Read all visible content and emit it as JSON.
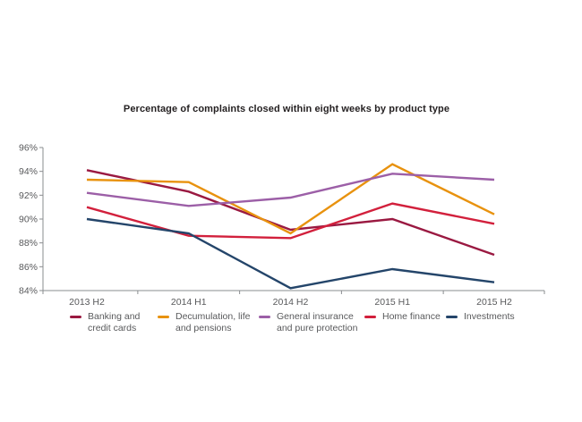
{
  "chart_data": {
    "type": "line",
    "title": "Percentage of complaints closed within eight weeks by product type",
    "categories": [
      "2013 H2",
      "2014 H1",
      "2014 H2",
      "2015 H1",
      "2015 H2"
    ],
    "xlabel": "",
    "ylabel": "",
    "y_axis": {
      "min": 84,
      "max": 96,
      "step": 2,
      "tick_labels": [
        "96%",
        "94%",
        "92%",
        "90%",
        "88%",
        "86%",
        "84%"
      ]
    },
    "grid": false,
    "legend_position": "bottom",
    "series": [
      {
        "name": "Banking and credit cards",
        "legend_lines": [
          "Banking and",
          "credit cards"
        ],
        "color": "#9A1941",
        "values": [
          94.1,
          92.3,
          89.1,
          90.0,
          87.0
        ]
      },
      {
        "name": "Decumulation, life and pensions",
        "legend_lines": [
          "Decumulation, life",
          "and pensions"
        ],
        "color": "#E8920E",
        "values": [
          93.3,
          93.1,
          88.8,
          94.6,
          90.4
        ]
      },
      {
        "name": "General insurance and pure protection",
        "legend_lines": [
          "General insurance",
          "and pure protection"
        ],
        "color": "#9C5FA7",
        "values": [
          92.2,
          91.1,
          91.8,
          93.8,
          93.3
        ]
      },
      {
        "name": "Home finance",
        "legend_lines": [
          "Home finance"
        ],
        "color": "#D2203C",
        "values": [
          91.0,
          88.6,
          88.4,
          91.3,
          89.6
        ]
      },
      {
        "name": "Investments",
        "legend_lines": [
          "Investments"
        ],
        "color": "#24456A",
        "values": [
          90.0,
          88.8,
          84.2,
          85.8,
          84.7
        ]
      }
    ]
  },
  "style_colors": {
    "axis_line": "#8A8C8F",
    "tick_text": "#58595B",
    "title_text": "#231F20"
  }
}
